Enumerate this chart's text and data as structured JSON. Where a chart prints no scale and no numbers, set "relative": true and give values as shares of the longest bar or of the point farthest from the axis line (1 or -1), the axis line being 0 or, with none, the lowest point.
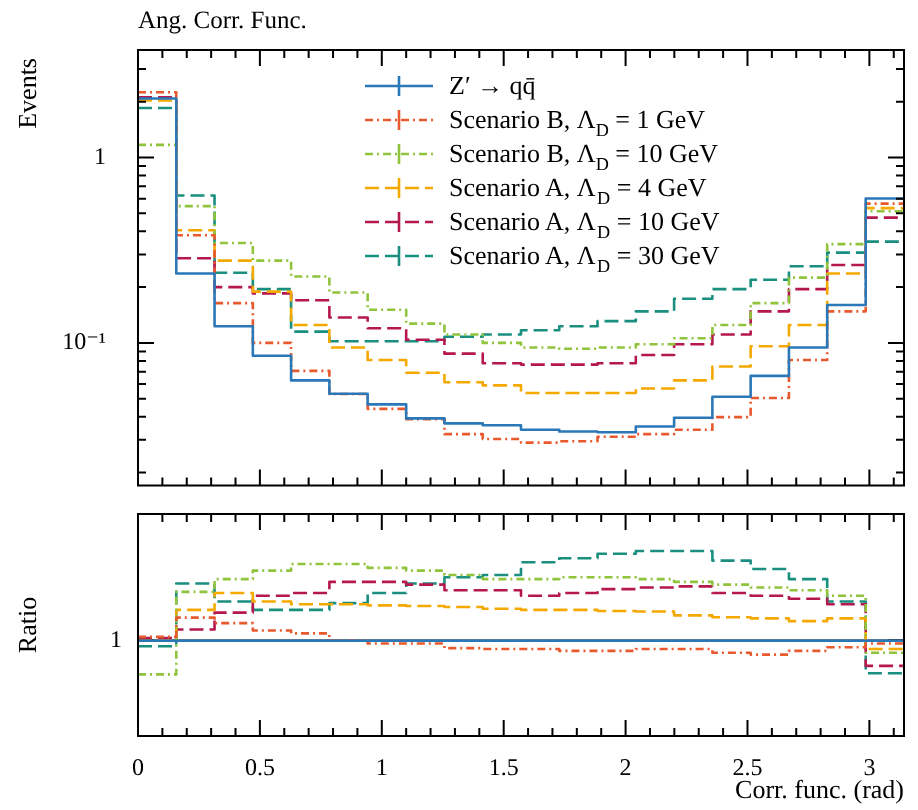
{
  "chart_data": [
    {
      "type": "step",
      "title": "Ang. Corr. Func.",
      "ylabel": "Events",
      "log": "y",
      "legend": "top",
      "tick_labels": "y",
      "x": [
        0,
        0.157,
        0.314,
        0.471,
        0.628,
        0.785,
        0.942,
        1.1,
        1.257,
        1.414,
        1.571,
        1.728,
        1.885,
        2.042,
        2.199,
        2.356,
        2.513,
        2.67,
        2.827,
        2.985,
        3.142
      ],
      "xlim": [
        0,
        3.142
      ],
      "xticks": [
        0,
        {
          "value": 0.1,
          "label": null
        },
        {
          "value": 0.2,
          "label": null
        },
        {
          "value": 0.3,
          "label": null
        },
        {
          "value": 0.4,
          "label": null
        },
        0.5,
        {
          "value": 0.6,
          "label": null
        },
        {
          "value": 0.7,
          "label": null
        },
        {
          "value": 0.8,
          "label": null
        },
        {
          "value": 0.9,
          "label": null
        },
        1,
        {
          "value": 1.1,
          "label": null
        },
        {
          "value": 1.2,
          "label": null
        },
        {
          "value": 1.3,
          "label": null
        },
        {
          "value": 1.4,
          "label": null
        },
        1.5,
        {
          "value": 1.6,
          "label": null
        },
        {
          "value": 1.7,
          "label": null
        },
        {
          "value": 1.8,
          "label": null
        },
        {
          "value": 1.9,
          "label": null
        },
        2,
        {
          "value": 2.1,
          "label": null
        },
        {
          "value": 2.2,
          "label": null
        },
        {
          "value": 2.3,
          "label": null
        },
        {
          "value": 2.4,
          "label": null
        },
        2.5,
        {
          "value": 2.6,
          "label": null
        },
        {
          "value": 2.7,
          "label": null
        },
        {
          "value": 2.8,
          "label": null
        },
        {
          "value": 2.9,
          "label": null
        },
        3,
        {
          "value": 3.1,
          "label": null
        }
      ],
      "ylim": [
        0.017,
        3.8
      ],
      "yticks": [
        {
          "value": 0.02,
          "label": null
        },
        {
          "value": 0.03,
          "label": null
        },
        {
          "value": 0.04,
          "label": null
        },
        {
          "value": 0.05,
          "label": null
        },
        {
          "value": 0.06,
          "label": null
        },
        {
          "value": 0.07,
          "label": null
        },
        {
          "value": 0.08,
          "label": null
        },
        {
          "value": 0.09,
          "label": null
        },
        {
          "value": 0.1,
          "label": "10⁻¹"
        },
        {
          "value": 0.2,
          "label": null
        },
        {
          "value": 0.3,
          "label": null
        },
        {
          "value": 0.4,
          "label": null
        },
        {
          "value": 0.5,
          "label": null
        },
        {
          "value": 0.6,
          "label": null
        },
        {
          "value": 0.7,
          "label": null
        },
        {
          "value": 0.8,
          "label": null
        },
        {
          "value": 0.9,
          "label": null
        },
        1,
        {
          "value": 2,
          "label": null
        },
        {
          "value": 3,
          "label": null
        }
      ],
      "series": [
        {
          "name": "Z′ → qq̄",
          "color": "#2a78b8",
          "line_style": "solid",
          "values": [
            2.08,
            0.237,
            0.123,
            0.0853,
            0.0628,
            0.0532,
            0.0466,
            0.0392,
            0.0368,
            0.036,
            0.034,
            0.0333,
            0.033,
            0.0354,
            0.0395,
            0.0512,
            0.0664,
            0.0945,
            0.16,
            0.601,
            0.601
          ]
        },
        {
          "name": "Scenario B, Λ$_{D}$ = 1 GeV",
          "color": "#e8592e",
          "line_style": "dotted",
          "values": [
            2.25,
            0.381,
            0.164,
            0.1,
            0.0707,
            0.053,
            0.0441,
            0.0388,
            0.0322,
            0.0303,
            0.029,
            0.0295,
            0.0312,
            0.0322,
            0.034,
            0.0398,
            0.0505,
            0.0809,
            0.148,
            0.564,
            0.564
          ]
        },
        {
          "name": "Scenario B, Λ$_{D}$ = 10 GeV",
          "color": "#8fc43c",
          "line_style": "dotted",
          "values": [
            1.17,
            0.547,
            0.346,
            0.278,
            0.228,
            0.187,
            0.151,
            0.127,
            0.111,
            0.1,
            0.0945,
            0.093,
            0.0945,
            0.0984,
            0.106,
            0.125,
            0.164,
            0.225,
            0.341,
            0.513,
            0.513
          ]
        },
        {
          "name": "Scenario A, Λ$_{D}$ = 4 GeV",
          "color": "#f5a800",
          "line_style": "dashed",
          "values": [
            2.03,
            0.405,
            0.278,
            0.189,
            0.125,
            0.0945,
            0.0809,
            0.069,
            0.0614,
            0.059,
            0.0537,
            0.0537,
            0.0537,
            0.0568,
            0.0628,
            0.0746,
            0.096,
            0.125,
            0.237,
            0.533,
            0.533
          ]
        },
        {
          "name": "Scenario A, Λ$_{D}$ = 10 GeV",
          "color": "#b5174f",
          "line_style": "dashed",
          "values": [
            2.11,
            0.286,
            0.2,
            0.185,
            0.17,
            0.137,
            0.12,
            0.104,
            0.0875,
            0.0777,
            0.0764,
            0.0764,
            0.0777,
            0.086,
            0.0984,
            0.111,
            0.148,
            0.195,
            0.263,
            0.474,
            0.474
          ]
        },
        {
          "name": "Scenario A, Λ$_{D}$ = 30 GeV",
          "color": "#1a8f7f",
          "line_style": "dashed",
          "values": [
            1.85,
            0.624,
            0.239,
            0.195,
            0.115,
            0.102,
            0.102,
            0.102,
            0.108,
            0.111,
            0.117,
            0.123,
            0.131,
            0.148,
            0.173,
            0.195,
            0.219,
            0.259,
            0.307,
            0.352,
            0.352
          ]
        }
      ]
    },
    {
      "type": "step",
      "ylabel": "Ratio",
      "xlabel": "Corr. func. (rad)",
      "relative": true,
      "tick_labels": "x",
      "ref_lines": [
        {
          "axis": "y",
          "value": 0.515,
          "label": "1",
          "color": "#000000"
        }
      ],
      "x": [
        0,
        0.157,
        0.314,
        0.471,
        0.628,
        0.785,
        0.942,
        1.1,
        1.257,
        1.414,
        1.571,
        1.728,
        1.885,
        2.042,
        2.199,
        2.356,
        2.513,
        2.67,
        2.827,
        2.985,
        3.142
      ],
      "xlim": [
        0,
        3.142
      ],
      "xticks": [
        0,
        {
          "value": 0.1,
          "label": null
        },
        {
          "value": 0.2,
          "label": null
        },
        {
          "value": 0.3,
          "label": null
        },
        {
          "value": 0.4,
          "label": null
        },
        0.5,
        {
          "value": 0.6,
          "label": null
        },
        {
          "value": 0.7,
          "label": null
        },
        {
          "value": 0.8,
          "label": null
        },
        {
          "value": 0.9,
          "label": null
        },
        1,
        {
          "value": 1.1,
          "label": null
        },
        {
          "value": 1.2,
          "label": null
        },
        {
          "value": 1.3,
          "label": null
        },
        {
          "value": 1.4,
          "label": null
        },
        1.5,
        {
          "value": 1.6,
          "label": null
        },
        {
          "value": 1.7,
          "label": null
        },
        {
          "value": 1.8,
          "label": null
        },
        {
          "value": 1.9,
          "label": null
        },
        2,
        {
          "value": 2.1,
          "label": null
        },
        {
          "value": 2.2,
          "label": null
        },
        {
          "value": 2.3,
          "label": null
        },
        {
          "value": 2.4,
          "label": null
        },
        2.5,
        {
          "value": 2.6,
          "label": null
        },
        {
          "value": 2.7,
          "label": null
        },
        {
          "value": 2.8,
          "label": null
        },
        {
          "value": 2.9,
          "label": null
        },
        3,
        {
          "value": 3.1,
          "label": null
        }
      ],
      "series": [
        {
          "color": "#2a78b8",
          "line_style": "solid",
          "values": [
            0.515,
            0.515,
            0.515,
            0.515,
            0.515,
            0.515,
            0.515,
            0.515,
            0.515,
            0.515,
            0.515,
            0.515,
            0.515,
            0.515,
            0.515,
            0.515,
            0.515,
            0.515,
            0.515,
            0.515,
            0.515
          ]
        },
        {
          "color": "#e8592e",
          "line_style": "dotted",
          "values": [
            0.536,
            0.64,
            0.61,
            0.57,
            0.555,
            0.515,
            0.5,
            0.5,
            0.475,
            0.47,
            0.47,
            0.46,
            0.46,
            0.47,
            0.47,
            0.45,
            0.44,
            0.46,
            0.48,
            0.5,
            0.5
          ]
        },
        {
          "color": "#8fc43c",
          "line_style": "dotted",
          "values": [
            0.333,
            0.779,
            0.848,
            0.894,
            0.93,
            0.93,
            0.909,
            0.894,
            0.87,
            0.848,
            0.848,
            0.858,
            0.858,
            0.848,
            0.833,
            0.818,
            0.803,
            0.788,
            0.758,
            0.45,
            0.45
          ]
        },
        {
          "color": "#f5a800",
          "line_style": "dashed",
          "values": [
            0.515,
            0.682,
            0.773,
            0.727,
            0.712,
            0.712,
            0.706,
            0.703,
            0.697,
            0.688,
            0.682,
            0.682,
            0.676,
            0.673,
            0.652,
            0.642,
            0.636,
            0.621,
            0.636,
            0.47,
            0.47
          ]
        },
        {
          "color": "#b5174f",
          "line_style": "dashed",
          "values": [
            0.53,
            0.576,
            0.667,
            0.758,
            0.773,
            0.833,
            0.833,
            0.818,
            0.788,
            0.788,
            0.758,
            0.773,
            0.794,
            0.803,
            0.809,
            0.773,
            0.758,
            0.742,
            0.712,
            0.379,
            0.379
          ]
        },
        {
          "color": "#1a8f7f",
          "line_style": "dashed",
          "values": [
            0.485,
            0.824,
            0.727,
            0.682,
            0.682,
            0.718,
            0.773,
            0.824,
            0.858,
            0.87,
            0.939,
            0.961,
            0.985,
            1,
            1,
            0.948,
            0.903,
            0.848,
            0.727,
            0.339,
            0.339
          ]
        }
      ]
    }
  ]
}
